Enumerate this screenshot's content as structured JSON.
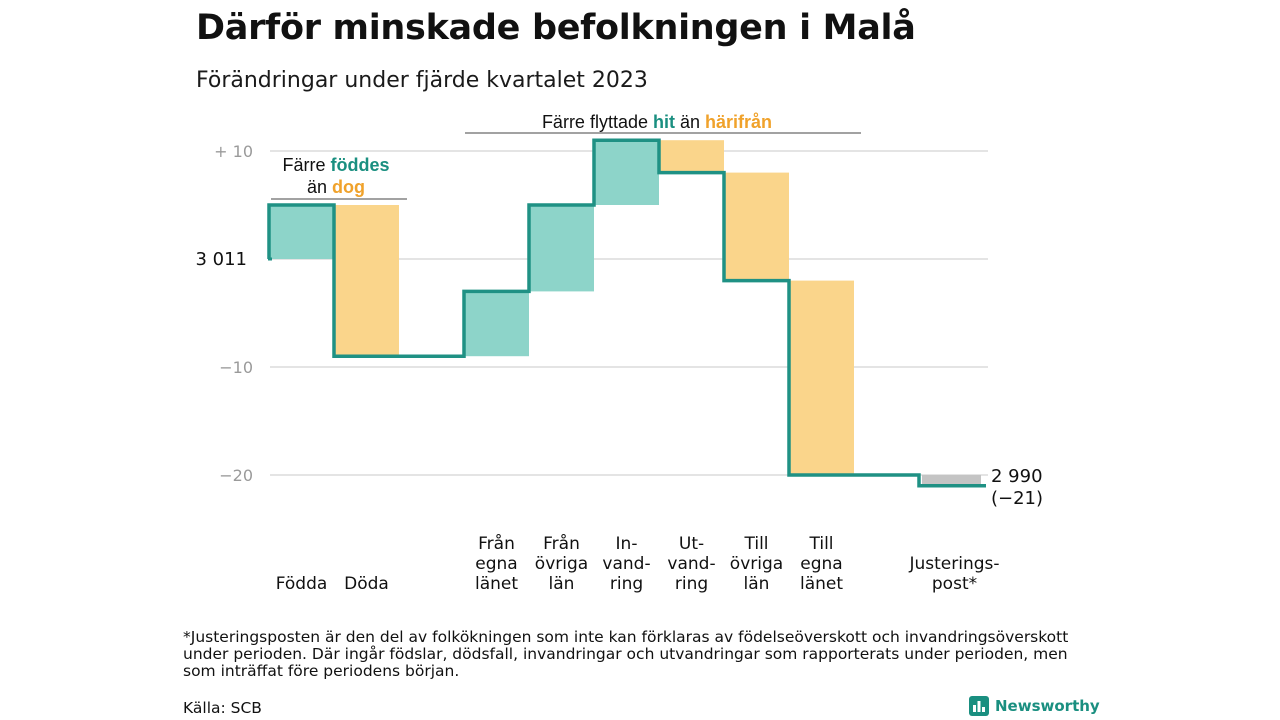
{
  "title": "Därför minskade befolkningen i Malå",
  "subtitle": "Förändringar under fjärde kvartalet 2023",
  "chart_data": {
    "type": "waterfall",
    "start_value": 3011,
    "start_label": "3 011",
    "end_value": 2990,
    "end_label": "2 990",
    "end_change_label": "(−21)",
    "ylim": [
      -22,
      11
    ],
    "yticks": [
      10,
      0,
      -10,
      -20
    ],
    "ytick_labels": [
      "+ 10",
      "",
      "−10",
      "−20"
    ],
    "grid": true,
    "colors": {
      "hit": "#8dd4c9",
      "harifran": "#fad58b",
      "adjust": "#c4c4c4",
      "line": "#1f9184",
      "teal_text": "#1a8f80",
      "orange_text": "#f0a22b"
    },
    "steps": [
      {
        "label": [
          "Födda"
        ],
        "value": 5,
        "kind": "hit"
      },
      {
        "label": [
          "Döda"
        ],
        "value": -14,
        "kind": "harifran"
      },
      {
        "label": [],
        "value": 0,
        "kind": "gap"
      },
      {
        "label": [
          "Från",
          "egna",
          "länet"
        ],
        "value": 6,
        "kind": "hit"
      },
      {
        "label": [
          "Från",
          "övriga",
          "län"
        ],
        "value": 8,
        "kind": "hit"
      },
      {
        "label": [
          "In-",
          "vand-",
          "ring"
        ],
        "value": 6,
        "kind": "hit"
      },
      {
        "label": [
          "Ut-",
          "vand-",
          "ring"
        ],
        "value": -3,
        "kind": "harifran"
      },
      {
        "label": [
          "Till",
          "övriga",
          "län"
        ],
        "value": -10,
        "kind": "harifran"
      },
      {
        "label": [
          "Till",
          "egna",
          "länet"
        ],
        "value": -18,
        "kind": "harifran"
      },
      {
        "label": [],
        "value": 0,
        "kind": "gap"
      },
      {
        "label": [
          "Justerings-",
          "post*"
        ],
        "value": -1,
        "kind": "adjust"
      }
    ],
    "annotations": {
      "births_group": {
        "prefix": "Färre",
        "teal": "föddes",
        "mid": "än",
        "orange": "dog"
      },
      "migration_group": {
        "prefix": "Färre flyttade",
        "teal": "hit",
        "mid": "än",
        "orange": "härifrån"
      }
    }
  },
  "footnote": "*Justeringsposten är den del av folkökningen som inte kan förklaras av födelseöverskott och invandringsöverskott under perioden. Där ingår födslar, dödsfall, invandringar och utvandringar som rapporterats under perioden, men som inträffat före periodens början.",
  "source": "Källa: SCB",
  "brand": "Newsworthy",
  "brand_icon": "bar-chart-logo-icon"
}
